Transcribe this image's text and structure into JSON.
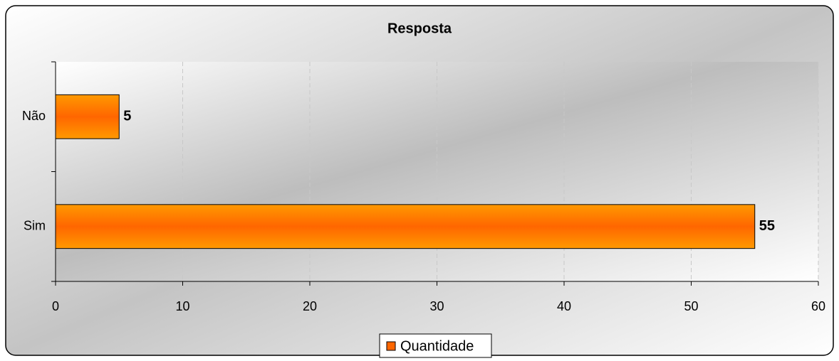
{
  "chart_data": {
    "type": "bar",
    "orientation": "horizontal",
    "title": "Resposta",
    "categories": [
      "Não",
      "Sim"
    ],
    "series": [
      {
        "name": "Quantidade",
        "color": "#ff6600",
        "values": [
          5,
          55
        ]
      }
    ],
    "xlim": [
      0,
      60
    ],
    "xticks": [
      0,
      10,
      20,
      30,
      40,
      50,
      60
    ],
    "grid": true,
    "legend": "bottom"
  }
}
